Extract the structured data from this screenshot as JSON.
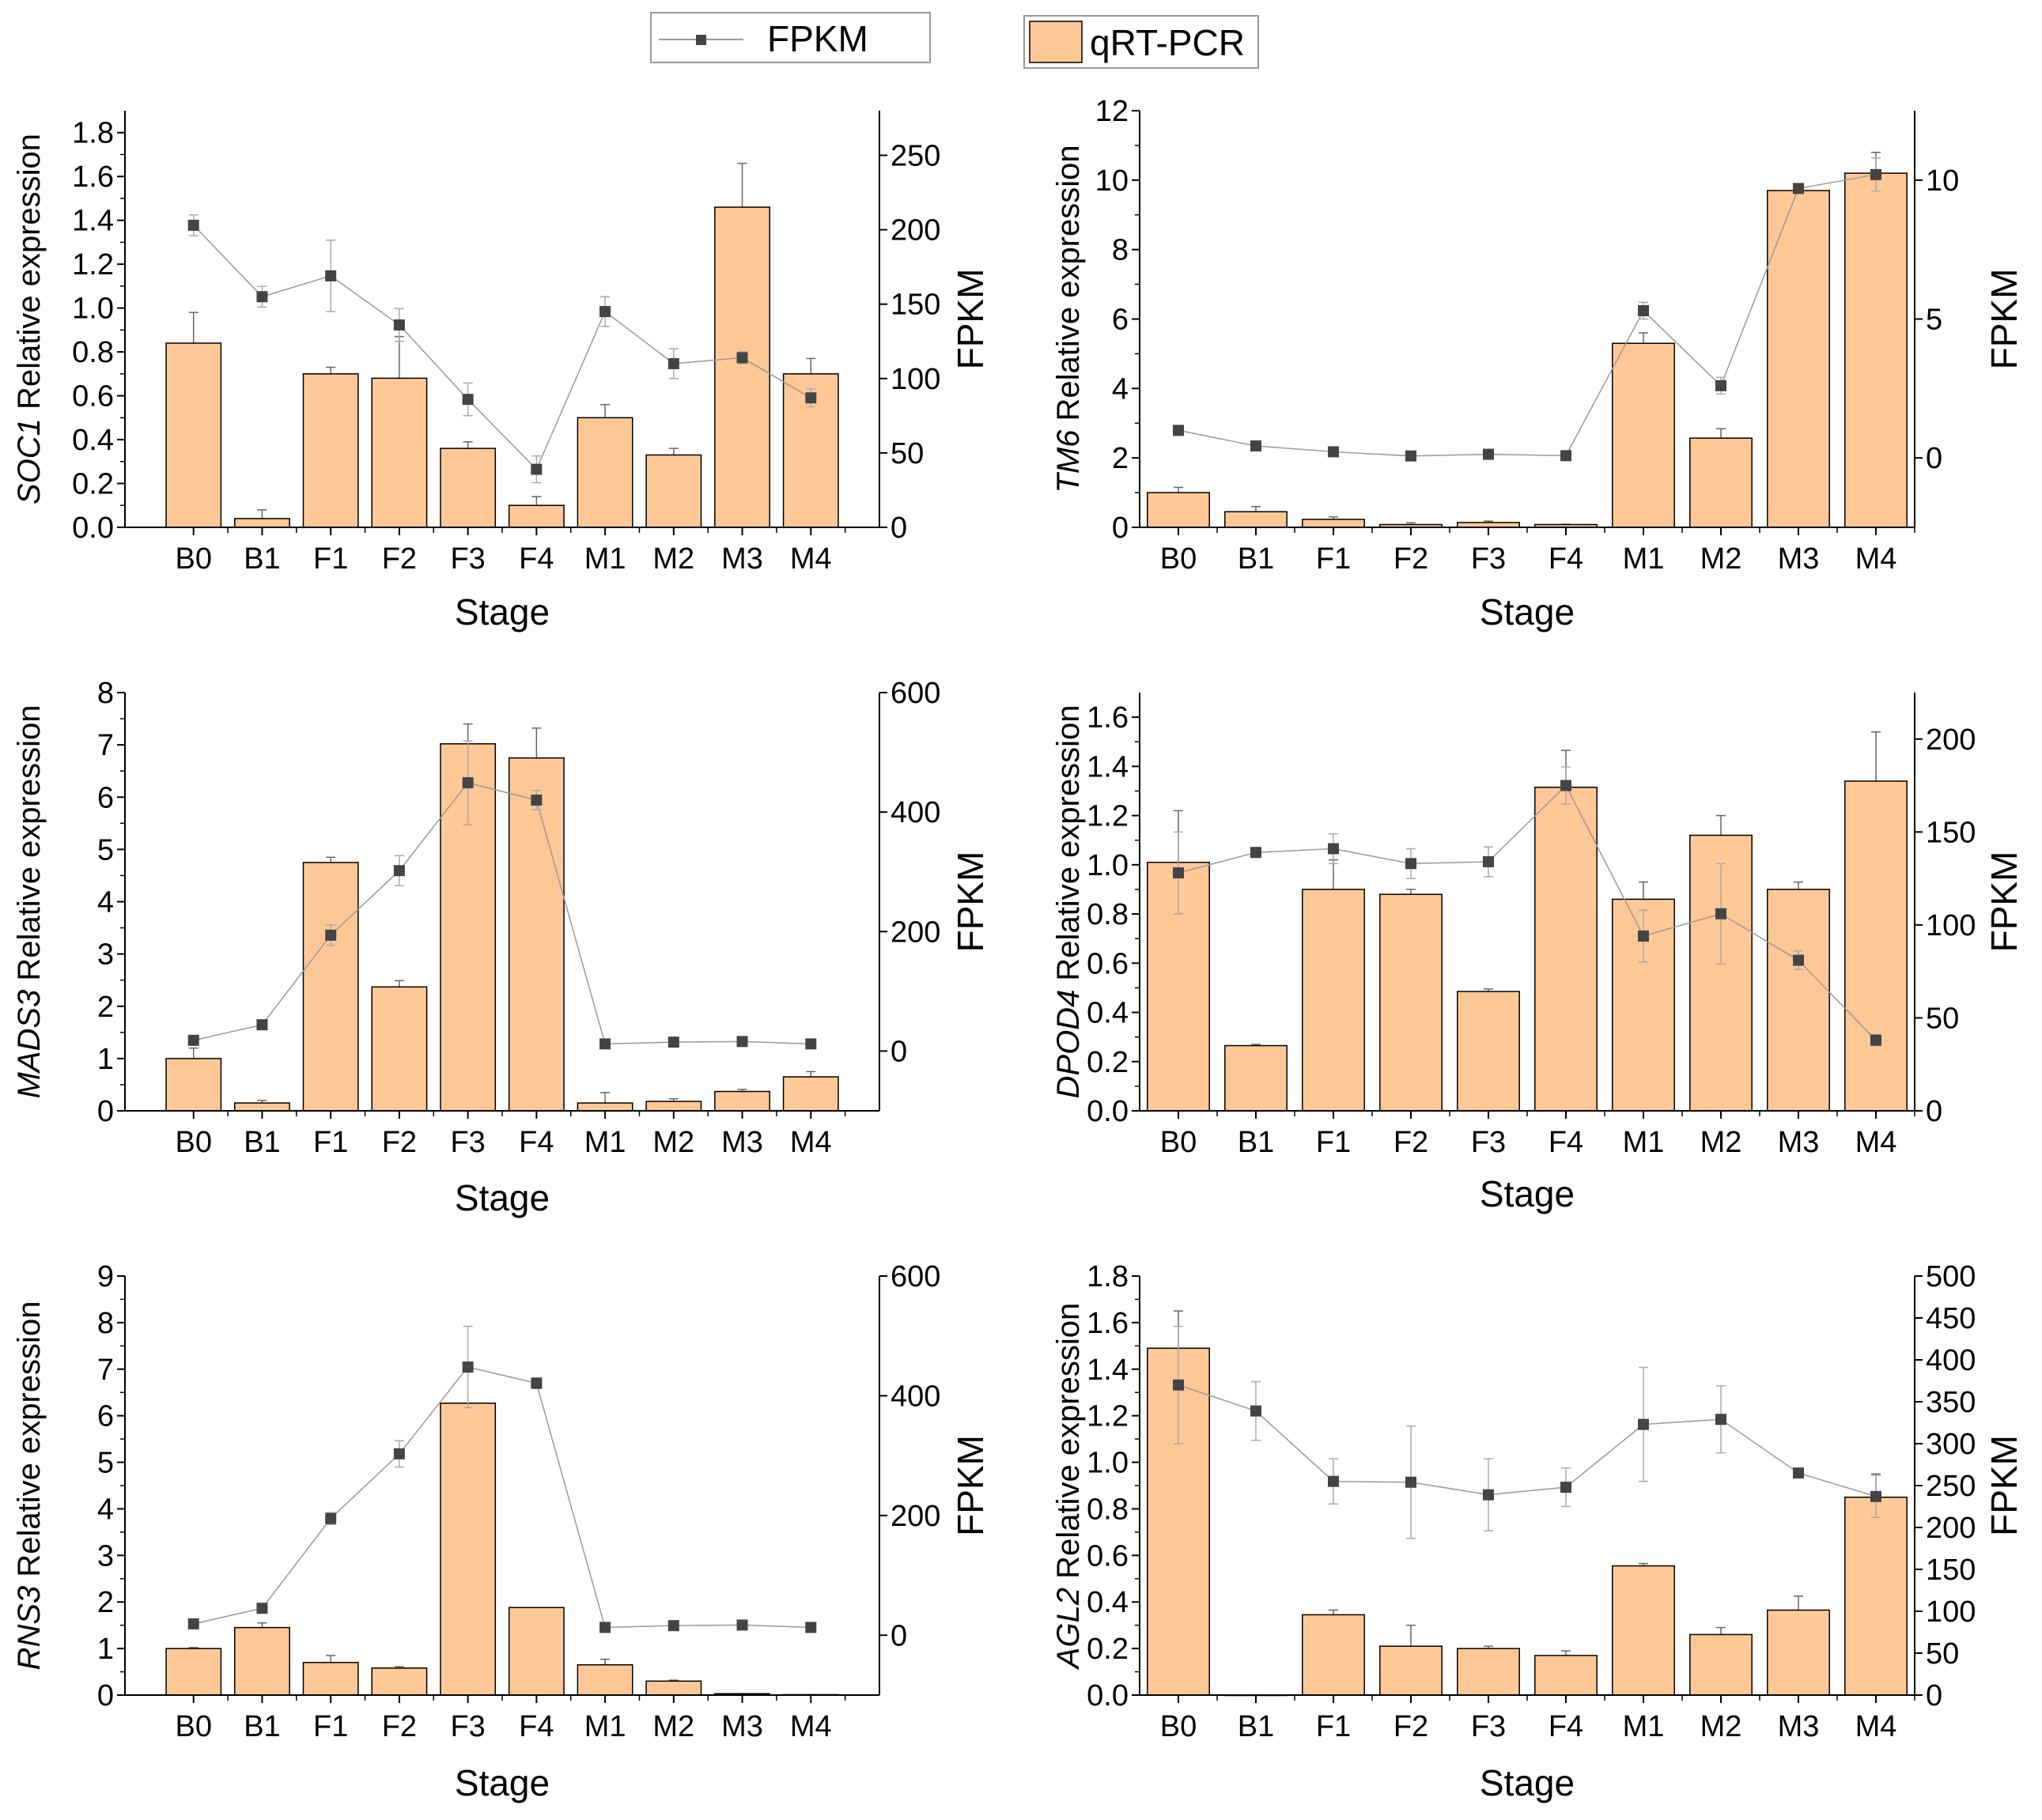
{
  "legend": {
    "fpkm": "FPKM",
    "qpcr": "qRT-PCR"
  },
  "colors": {
    "bar": "#FFC896",
    "line": "#9a9a9a",
    "marker": "#444444"
  },
  "chart_data": [
    {
      "type": "bar+line",
      "gene": "SOC1",
      "ylabel_suffix": " Relative expression",
      "xlabel": "Stage",
      "y2label": "FPKM",
      "categories": [
        "B0",
        "B1",
        "F1",
        "F2",
        "F3",
        "F4",
        "M1",
        "M2",
        "M3",
        "M4"
      ],
      "ylim": [
        0,
        1.9
      ],
      "yticks": [
        "0.0",
        "0.2",
        "0.4",
        "0.6",
        "0.8",
        "1.0",
        "1.2",
        "1.4",
        "1.6",
        "1.8"
      ],
      "y2lim": [
        0,
        280
      ],
      "y2ticks": [
        "0",
        "50",
        "100",
        "150",
        "200",
        "250"
      ],
      "qpcr": [
        0.84,
        0.04,
        0.7,
        0.68,
        0.36,
        0.1,
        0.5,
        0.33,
        1.46,
        0.7
      ],
      "qpcr_err": [
        0.14,
        0.04,
        0.03,
        0.19,
        0.03,
        0.04,
        0.06,
        0.03,
        0.2,
        0.07
      ],
      "fpkm": [
        203,
        155,
        169,
        136,
        86,
        39,
        145,
        110,
        114,
        87
      ],
      "fpkm_err": [
        7,
        7,
        24,
        11,
        11,
        9,
        10,
        10,
        4,
        6
      ]
    },
    {
      "type": "bar+line",
      "gene": "TM6",
      "ylabel_suffix": " Relative expression",
      "xlabel": "Stage",
      "y2label": "FPKM",
      "categories": [
        "B0",
        "B1",
        "F1",
        "F2",
        "F3",
        "F4",
        "M1",
        "M2",
        "M3",
        "M4"
      ],
      "ylim": [
        0,
        12
      ],
      "yticks": [
        "0",
        "2",
        "4",
        "6",
        "8",
        "10",
        "12"
      ],
      "y2lim": [
        -2.5,
        12.5
      ],
      "y2ticks": [
        "0",
        "5",
        "10"
      ],
      "qpcr": [
        1.0,
        0.45,
        0.23,
        0.08,
        0.14,
        0.08,
        5.3,
        2.57,
        9.7,
        10.2
      ],
      "qpcr_err": [
        0.15,
        0.15,
        0.07,
        0.05,
        0.04,
        0.01,
        0.3,
        0.27,
        0.05,
        0.6
      ],
      "fpkm": [
        0.99,
        0.43,
        0.22,
        0.07,
        0.13,
        0.08,
        5.3,
        2.6,
        9.7,
        10.2
      ],
      "fpkm_err": [
        0.05,
        0.05,
        0.05,
        0.05,
        0.05,
        0.05,
        0.3,
        0.3,
        0.1,
        0.6
      ]
    },
    {
      "type": "bar+line",
      "gene": "MADS3",
      "ylabel_suffix": " Relative expression",
      "xlabel": "Stage",
      "y2label": "FPKM",
      "categories": [
        "B0",
        "B1",
        "F1",
        "F2",
        "F3",
        "F4",
        "M1",
        "M2",
        "M3",
        "M4"
      ],
      "ylim": [
        0,
        8
      ],
      "yticks": [
        "0",
        "1",
        "2",
        "3",
        "4",
        "5",
        "6",
        "7",
        "8"
      ],
      "y2lim": [
        -100,
        600
      ],
      "y2ticks": [
        "0",
        "200",
        "400",
        "600"
      ],
      "qpcr": [
        1.0,
        0.15,
        4.75,
        2.37,
        7.02,
        6.75,
        0.15,
        0.18,
        0.37,
        0.65
      ],
      "qpcr_err": [
        0.2,
        0.05,
        0.1,
        0.12,
        0.38,
        0.57,
        0.2,
        0.05,
        0.04,
        0.1
      ],
      "fpkm": [
        18,
        44,
        194,
        302,
        449,
        420,
        12,
        15,
        16,
        12
      ],
      "fpkm_err": [
        5,
        5,
        17,
        25,
        70,
        16,
        4,
        4,
        4,
        4
      ]
    },
    {
      "type": "bar+line",
      "gene": "DPOD4",
      "ylabel_suffix": " Relative expression",
      "xlabel": "Stage",
      "y2label": "FPKM",
      "categories": [
        "B0",
        "B1",
        "F1",
        "F2",
        "F3",
        "F4",
        "M1",
        "M2",
        "M3",
        "M4"
      ],
      "ylim": [
        0,
        1.7
      ],
      "yticks": [
        "0.0",
        "0.2",
        "0.4",
        "0.6",
        "0.8",
        "1.0",
        "1.2",
        "1.4",
        "1.6"
      ],
      "y2lim": [
        0,
        225
      ],
      "y2ticks": [
        "0",
        "50",
        "100",
        "150",
        "200"
      ],
      "qpcr": [
        1.01,
        0.265,
        0.9,
        0.88,
        0.485,
        1.315,
        0.86,
        1.12,
        0.9,
        1.34
      ],
      "qpcr_err": [
        0.21,
        0.005,
        0.12,
        0.02,
        0.01,
        0.15,
        0.07,
        0.08,
        0.03,
        0.2
      ],
      "fpkm": [
        128,
        139,
        141,
        133,
        134,
        175,
        94,
        106,
        81,
        38
      ],
      "fpkm_err": [
        22,
        2,
        8,
        8,
        8,
        10,
        14,
        27,
        5,
        3
      ]
    },
    {
      "type": "bar+line",
      "gene": "RNS3",
      "ylabel_suffix": " Relative expression",
      "xlabel": "Stage",
      "y2label": "FPKM",
      "categories": [
        "B0",
        "B1",
        "F1",
        "F2",
        "F3",
        "F4",
        "M1",
        "M2",
        "M3",
        "M4"
      ],
      "ylim": [
        0,
        9
      ],
      "yticks": [
        "0",
        "1",
        "2",
        "3",
        "4",
        "5",
        "6",
        "7",
        "8",
        "9"
      ],
      "y2lim": [
        -100,
        600
      ],
      "y2ticks": [
        "0",
        "200",
        "400",
        "600"
      ],
      "qpcr": [
        1.0,
        1.45,
        0.7,
        0.58,
        6.27,
        1.88,
        0.65,
        0.3,
        0.03,
        0.01
      ],
      "qpcr_err": [
        0.02,
        0.1,
        0.15,
        0.03,
        0.0,
        0.0,
        0.12,
        0.02,
        0.0,
        0.0
      ],
      "fpkm": [
        19,
        45,
        195,
        303,
        448,
        421,
        13,
        16,
        17,
        13
      ],
      "fpkm_err": [
        4,
        4,
        10,
        22,
        68,
        9,
        3,
        3,
        3,
        3
      ]
    },
    {
      "type": "bar+line",
      "gene": "AGL2",
      "ylabel_suffix": " Relative expression",
      "xlabel": "Stage",
      "y2label": "FPKM",
      "categories": [
        "B0",
        "B1",
        "F1",
        "F2",
        "F3",
        "F4",
        "M1",
        "M2",
        "M3",
        "M4"
      ],
      "ylim": [
        0,
        1.8
      ],
      "yticks": [
        "0.0",
        "0.2",
        "0.4",
        "0.6",
        "0.8",
        "1.0",
        "1.2",
        "1.4",
        "1.6",
        "1.8"
      ],
      "y2lim": [
        0,
        500
      ],
      "y2ticks": [
        "0",
        "50",
        "100",
        "150",
        "200",
        "250",
        "300",
        "350",
        "400",
        "450",
        "500"
      ],
      "qpcr": [
        1.49,
        0.0,
        0.345,
        0.21,
        0.2,
        0.17,
        0.555,
        0.26,
        0.365,
        0.85
      ],
      "qpcr_err": [
        0.16,
        0,
        0.02,
        0.09,
        0.01,
        0.02,
        0.01,
        0.03,
        0.06,
        0.1
      ],
      "fpkm": [
        370,
        339,
        255,
        254,
        239,
        248,
        323,
        329,
        265,
        237
      ],
      "fpkm_err": [
        70,
        35,
        27,
        67,
        43,
        23,
        68,
        40,
        5,
        25
      ]
    }
  ]
}
